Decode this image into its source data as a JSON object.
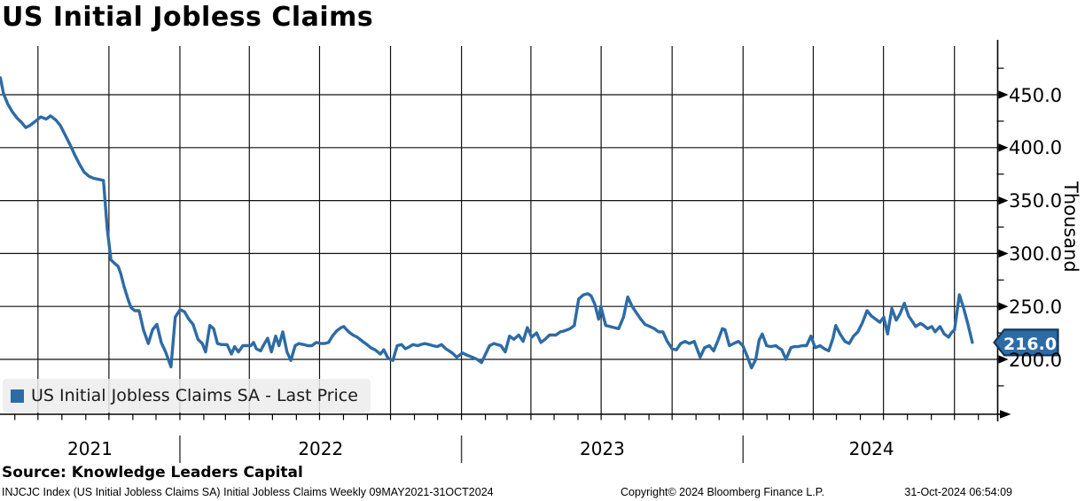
{
  "title": "US Initial Jobless Claims",
  "legend": {
    "label": "US Initial Jobless Claims SA - Last Price",
    "marker_color": "#2d6ba5"
  },
  "last_price_badge": {
    "value": "216.0",
    "fill": "#2d6ba5",
    "border": "#16365c",
    "text_color": "#ffffff"
  },
  "y_axis": {
    "unit_label": "Thousand",
    "ticks": [
      "450.0",
      "400.0",
      "350.0",
      "300.0",
      "250.0",
      "200.0"
    ],
    "tick_values": [
      450,
      400,
      350,
      300,
      250,
      200
    ],
    "minor_tick_values": [
      475,
      425,
      375,
      325,
      275,
      225,
      175
    ]
  },
  "x_axis": {
    "year_labels": [
      "2021",
      "2022",
      "2023",
      "2024"
    ]
  },
  "source": {
    "text": "Source: Knowledge Leaders Capital"
  },
  "footer": {
    "left": "INJCJC Index (US Initial Jobless Claims SA) Initial Jobless Claims  Weekly 09MAY2021-31OCT2024",
    "center": "Copyright© 2024 Bloomberg Finance L.P.",
    "right": "31-Oct-2024 06:54:09"
  },
  "chart_data": {
    "type": "line",
    "title": "US Initial Jobless Claims",
    "x_unit": "weeks since 2021-05-09 (weekly frequency)",
    "x_start_date": "09MAY2021",
    "x_end_date": "31OCT2024",
    "y_unit": "Thousand",
    "y_gridlines": [
      200,
      250,
      300,
      350,
      400,
      450
    ],
    "grid": "both",
    "legend_position": "bottom-left",
    "last_value": 216.0,
    "series": [
      {
        "name": "US Initial Jobless Claims SA - Last Price",
        "color": "#2d6ba5",
        "points": [
          [
            0.6,
            466
          ],
          [
            1.2,
            451
          ],
          [
            2,
            441
          ],
          [
            2.8,
            434
          ],
          [
            3.7,
            428
          ],
          [
            4.5,
            424
          ],
          [
            5.3,
            419
          ],
          [
            6.1,
            421
          ],
          [
            7.1,
            425
          ],
          [
            8.1,
            429
          ],
          [
            9.1,
            427
          ],
          [
            9.9,
            430
          ],
          [
            10.9,
            426
          ],
          [
            11.7,
            421
          ],
          [
            12.7,
            411
          ],
          [
            13.5,
            403
          ],
          [
            14.5,
            392
          ],
          [
            15.3,
            384
          ],
          [
            16.1,
            377
          ],
          [
            17,
            373
          ],
          [
            17.9,
            371
          ],
          [
            18.9,
            370
          ],
          [
            19.7,
            369
          ],
          [
            20.4,
            323
          ],
          [
            21.1,
            294
          ],
          [
            21.7,
            291
          ],
          [
            22.4,
            288
          ],
          [
            22.9,
            281
          ],
          [
            23.5,
            269
          ],
          [
            24.3,
            256
          ],
          [
            24.8,
            249
          ],
          [
            25.5,
            246
          ],
          [
            26.3,
            246
          ],
          [
            27.1,
            228
          ],
          [
            28,
            215
          ],
          [
            28.8,
            228
          ],
          [
            29.6,
            233
          ],
          [
            30.4,
            216
          ],
          [
            31.2,
            207
          ],
          [
            32.2,
            193
          ],
          [
            33,
            240
          ],
          [
            33.9,
            247
          ],
          [
            34.7,
            245
          ],
          [
            35.5,
            238
          ],
          [
            36.3,
            233
          ],
          [
            37.2,
            219
          ],
          [
            38,
            215
          ],
          [
            38.6,
            207
          ],
          [
            39.4,
            232
          ],
          [
            40.1,
            229
          ],
          [
            40.8,
            215
          ],
          [
            41.6,
            214
          ],
          [
            42.6,
            214
          ],
          [
            43.4,
            205
          ],
          [
            44,
            212
          ],
          [
            44.7,
            207
          ],
          [
            45.5,
            213
          ],
          [
            46.2,
            213
          ],
          [
            47,
            213
          ],
          [
            47.5,
            216
          ],
          [
            48,
            210
          ],
          [
            48.8,
            208
          ],
          [
            49.3,
            213
          ],
          [
            50.1,
            220
          ],
          [
            50.8,
            207
          ],
          [
            51.6,
            222
          ],
          [
            52.2,
            213
          ],
          [
            52.9,
            226
          ],
          [
            53.7,
            207
          ],
          [
            54.4,
            199
          ],
          [
            55.2,
            213
          ],
          [
            55.9,
            215
          ],
          [
            56.8,
            214
          ],
          [
            57.5,
            213
          ],
          [
            58.3,
            213
          ],
          [
            59.1,
            216
          ],
          [
            60,
            215
          ],
          [
            60.6,
            215
          ],
          [
            61.4,
            216
          ],
          [
            62.1,
            222
          ],
          [
            62.9,
            227
          ],
          [
            63.7,
            230
          ],
          [
            64.2,
            231
          ],
          [
            65.1,
            226
          ],
          [
            65.9,
            223
          ],
          [
            66.7,
            221
          ],
          [
            67.7,
            217
          ],
          [
            68.5,
            214
          ],
          [
            69.2,
            211
          ],
          [
            70,
            209
          ],
          [
            71,
            205
          ],
          [
            71.6,
            209
          ],
          [
            72.4,
            201
          ],
          [
            73.3,
            199
          ],
          [
            74.1,
            213
          ],
          [
            74.9,
            214
          ],
          [
            75.6,
            210
          ],
          [
            76.4,
            212
          ],
          [
            77,
            214
          ],
          [
            77.9,
            213
          ],
          [
            78.5,
            214
          ],
          [
            79.2,
            215
          ],
          [
            80,
            214
          ],
          [
            80.7,
            213
          ],
          [
            81.5,
            212
          ],
          [
            82.3,
            214
          ],
          [
            83.1,
            210
          ],
          [
            84.3,
            206
          ],
          [
            85.1,
            202
          ],
          [
            86.2,
            206
          ],
          [
            87,
            204
          ],
          [
            88,
            202
          ],
          [
            88.9,
            200
          ],
          [
            89.7,
            197
          ],
          [
            91.2,
            213
          ],
          [
            92,
            215
          ],
          [
            93.3,
            213
          ],
          [
            94.1,
            207
          ],
          [
            94.9,
            222
          ],
          [
            95.7,
            219
          ],
          [
            96.6,
            223
          ],
          [
            97.4,
            217
          ],
          [
            98.2,
            230
          ],
          [
            99,
            221
          ],
          [
            99.9,
            225
          ],
          [
            100.7,
            216
          ],
          [
            101.5,
            219
          ],
          [
            102.3,
            223
          ],
          [
            103.5,
            223
          ],
          [
            104.3,
            226
          ],
          [
            105.1,
            227
          ],
          [
            106.1,
            229
          ],
          [
            106.9,
            232
          ],
          [
            107.7,
            257
          ],
          [
            108.6,
            261
          ],
          [
            109.4,
            262
          ],
          [
            110,
            260
          ],
          [
            110.7,
            252
          ],
          [
            111.4,
            238
          ],
          [
            111.8,
            250
          ],
          [
            112.7,
            232
          ],
          [
            113.5,
            231
          ],
          [
            114.3,
            230
          ],
          [
            115.1,
            229
          ],
          [
            116,
            240
          ],
          [
            116.8,
            259
          ],
          [
            117.6,
            250
          ],
          [
            118.4,
            244
          ],
          [
            119.2,
            238
          ],
          [
            120,
            233
          ],
          [
            120.9,
            231
          ],
          [
            121.7,
            229
          ],
          [
            122.5,
            226
          ],
          [
            123.3,
            226
          ],
          [
            124.1,
            217
          ],
          [
            125,
            210
          ],
          [
            125.8,
            209
          ],
          [
            126.6,
            215
          ],
          [
            127.4,
            217
          ],
          [
            128.2,
            215
          ],
          [
            129.1,
            217
          ],
          [
            130.2,
            202
          ],
          [
            131,
            211
          ],
          [
            131.9,
            213
          ],
          [
            132.7,
            208
          ],
          [
            133.5,
            218
          ],
          [
            134.3,
            229
          ],
          [
            134.8,
            228
          ],
          [
            135.6,
            213
          ],
          [
            136.4,
            215
          ],
          [
            137.3,
            217
          ],
          [
            138.1,
            213
          ],
          [
            138.9,
            203
          ],
          [
            139.7,
            192
          ],
          [
            140.5,
            200
          ],
          [
            141.1,
            218
          ],
          [
            141.7,
            224
          ],
          [
            142.5,
            213
          ],
          [
            143.3,
            212
          ],
          [
            144.2,
            213
          ],
          [
            144.7,
            211
          ],
          [
            145.3,
            209
          ],
          [
            146.1,
            200
          ],
          [
            147,
            211
          ],
          [
            147.6,
            212
          ],
          [
            148.3,
            212
          ],
          [
            149.1,
            213
          ],
          [
            149.9,
            213
          ],
          [
            150.7,
            222
          ],
          [
            151.5,
            211
          ],
          [
            152.4,
            213
          ],
          [
            153.2,
            210
          ],
          [
            154,
            208
          ],
          [
            154.8,
            220
          ],
          [
            155.3,
            232
          ],
          [
            156.1,
            224
          ],
          [
            157,
            217
          ],
          [
            157.8,
            215
          ],
          [
            158.6,
            222
          ],
          [
            159.4,
            226
          ],
          [
            160.2,
            234
          ],
          [
            161.1,
            246
          ],
          [
            161.9,
            241
          ],
          [
            162.7,
            238
          ],
          [
            163.5,
            235
          ],
          [
            164.2,
            240
          ],
          [
            164.9,
            224
          ],
          [
            165.7,
            248
          ],
          [
            166.5,
            237
          ],
          [
            167.2,
            243
          ],
          [
            168,
            253
          ],
          [
            168.8,
            241
          ],
          [
            169.6,
            235
          ],
          [
            170.1,
            231
          ],
          [
            171,
            234
          ],
          [
            171.6,
            232
          ],
          [
            172.3,
            229
          ],
          [
            173.1,
            231
          ],
          [
            173.7,
            226
          ],
          [
            174.6,
            231
          ],
          [
            175.4,
            224
          ],
          [
            176.2,
            221
          ],
          [
            176.7,
            225
          ],
          [
            177.3,
            228
          ],
          [
            178.2,
            261
          ],
          [
            179,
            248
          ],
          [
            179.8,
            233
          ],
          [
            180.6,
            216
          ]
        ]
      }
    ]
  }
}
